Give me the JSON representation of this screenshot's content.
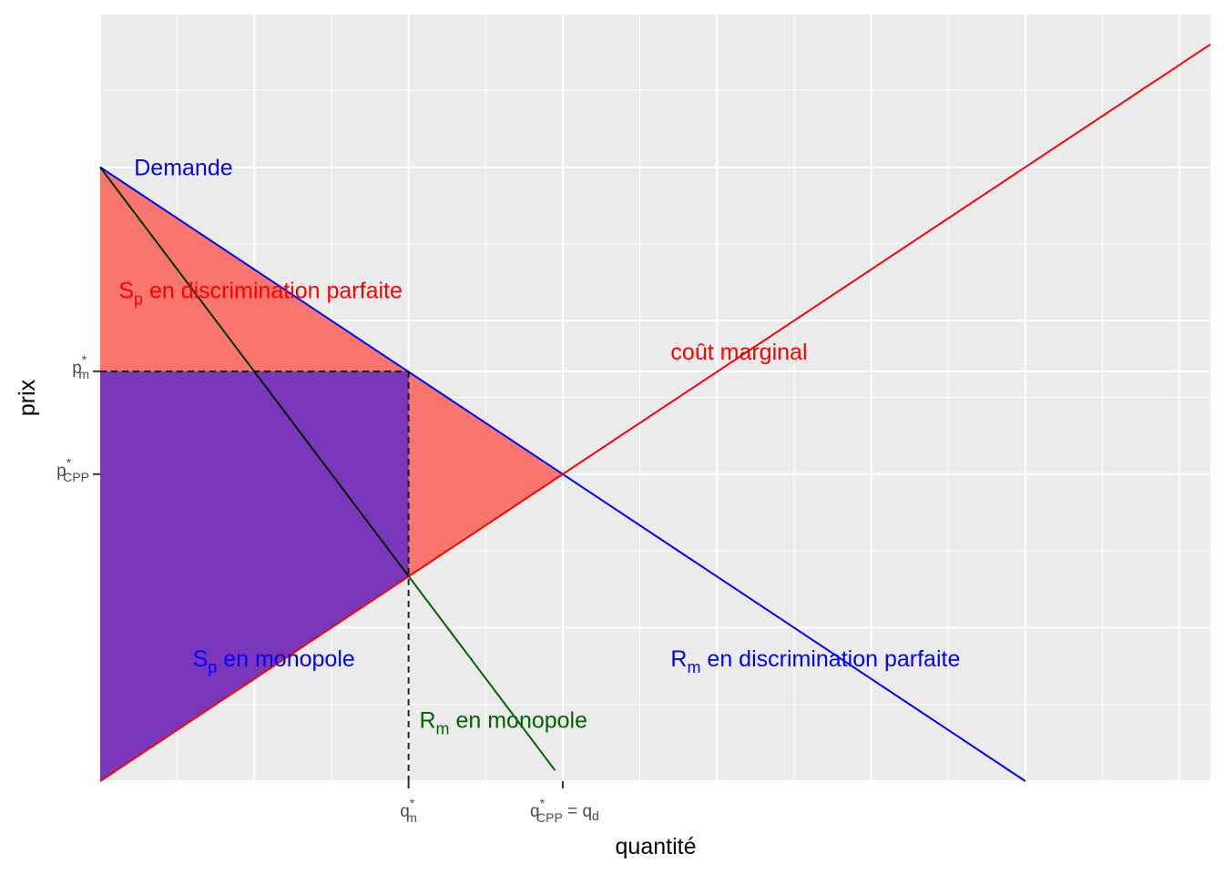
{
  "chart_data": {
    "type": "line",
    "xlabel": "quantité",
    "ylabel": "prix",
    "xlim": [
      0,
      7.2
    ],
    "ylim": [
      0,
      5
    ],
    "grid": true,
    "colors": {
      "demand": "#0000ff",
      "marginal_cost": "#ff0000",
      "marginal_revenue": "#006400",
      "surplus_discrimination": "#f8766d",
      "surplus_monopoly": "#7b37bb",
      "dashed": "#000000"
    },
    "series": [
      {
        "name": "Demande",
        "x": [
          0,
          6
        ],
        "y": [
          4,
          0
        ]
      },
      {
        "name": "coût marginal",
        "x": [
          0,
          7.2
        ],
        "y": [
          0,
          4.8
        ]
      },
      {
        "name": "Rm en monopole",
        "x": [
          0,
          2.95
        ],
        "y": [
          4,
          0.07
        ]
      }
    ],
    "key_points": {
      "q_m": 2,
      "p_m": 2.67,
      "mc_at_q_m": 1.33,
      "q_cpp": 3,
      "p_cpp": 2
    },
    "x_ticks": [
      {
        "x": 2,
        "base": "q",
        "sub": "m",
        "sup": "*",
        "suffix": ""
      },
      {
        "x": 3,
        "base": "q",
        "sub": "CPP",
        "sup": "*",
        "suffix": " = q",
        "suffix_sub": "d"
      }
    ],
    "y_ticks": [
      {
        "y": 2.67,
        "base": "p",
        "sub": "m",
        "sup": "*"
      },
      {
        "y": 2,
        "base": "p",
        "sub": "CPP",
        "sup": "*"
      }
    ],
    "annotations": {
      "demande": {
        "text": "Demande",
        "x": 0.22,
        "y": 4
      },
      "sp_discrimination": {
        "main": "S",
        "sub": "p",
        "rest": " en discrimination parfaite",
        "x": 0.12,
        "y": 3.2
      },
      "cout_marginal": {
        "text": "coût marginal",
        "x": 3.7,
        "y": 2.8
      },
      "sp_monopole": {
        "main": "S",
        "sub": "p",
        "rest": " en monopole",
        "x": 0.6,
        "y": 0.8
      },
      "rm_discrimination": {
        "main": "R",
        "sub": "m",
        "rest": " en discrimination parfaite",
        "x": 3.7,
        "y": 0.8
      },
      "rm_monopole": {
        "main": "R",
        "sub": "m",
        "rest": " en monopole",
        "x": 2.07,
        "y": 0.4
      }
    }
  }
}
